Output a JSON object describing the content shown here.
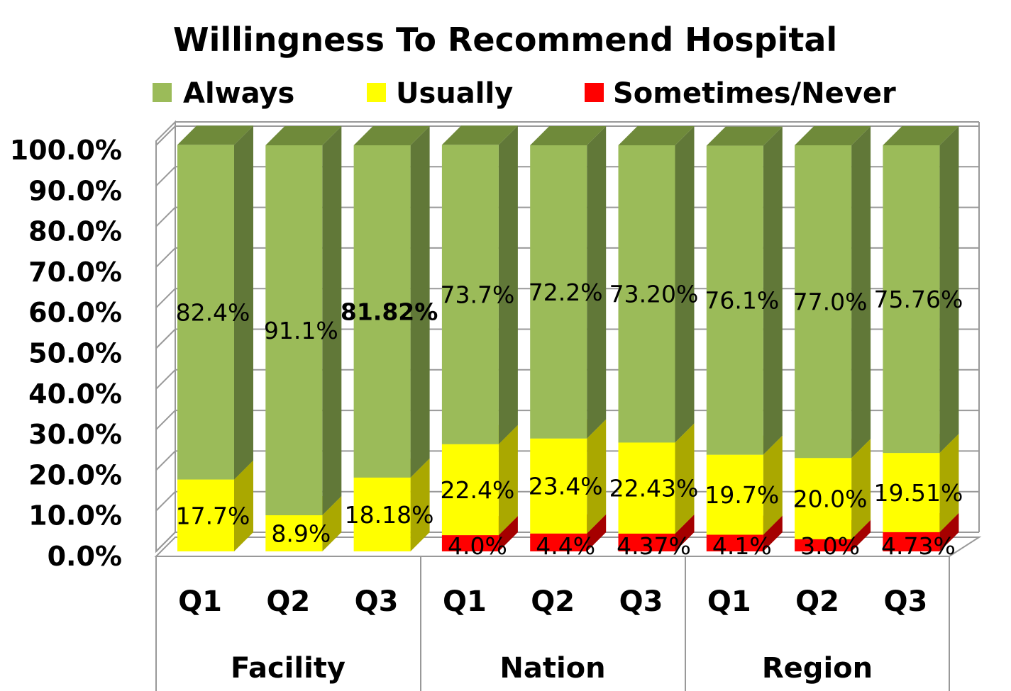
{
  "chart_data": {
    "type": "bar",
    "stacked": true,
    "three_d": true,
    "title": "Willingness To Recommend Hospital",
    "legend_position": "top",
    "ylim": [
      0,
      100
    ],
    "y_ticks": [
      "0.0%",
      "10.0%",
      "20.0%",
      "30.0%",
      "40.0%",
      "50.0%",
      "60.0%",
      "70.0%",
      "80.0%",
      "90.0%",
      "100.0%"
    ],
    "grid": true,
    "groups": [
      {
        "name": "Facility",
        "categories": [
          "Q1",
          "Q2",
          "Q3"
        ]
      },
      {
        "name": "Nation",
        "categories": [
          "Q1",
          "Q2",
          "Q3"
        ]
      },
      {
        "name": "Region",
        "categories": [
          "Q1",
          "Q2",
          "Q3"
        ]
      }
    ],
    "series": [
      {
        "name": "Sometimes/Never",
        "color": "#ff0000",
        "values": [
          0,
          0,
          0,
          4.0,
          4.4,
          4.37,
          4.1,
          3.0,
          4.73
        ],
        "labels": [
          "",
          "",
          "",
          "4.0%",
          "4.4%",
          "4.37%",
          "4.1%",
          "3.0%",
          "4.73%"
        ]
      },
      {
        "name": "Usually",
        "color": "#ffff00",
        "values": [
          17.7,
          8.9,
          18.18,
          22.4,
          23.4,
          22.43,
          19.7,
          20.0,
          19.51
        ],
        "labels": [
          "17.7%",
          "8.9%",
          "18.18%",
          "22.4%",
          "23.4%",
          "22.43%",
          "19.7%",
          "20.0%",
          "19.51%"
        ]
      },
      {
        "name": "Always",
        "color": "#9bbb59",
        "values": [
          82.4,
          91.1,
          81.82,
          73.7,
          72.2,
          73.2,
          76.1,
          77.0,
          75.76
        ],
        "labels": [
          "82.4%",
          "91.1%",
          "81.82%",
          "73.7%",
          "72.2%",
          "73.20%",
          "76.1%",
          "77.0%",
          "75.76%"
        ]
      }
    ],
    "legend": [
      "Always",
      "Usually",
      "Sometimes/Never"
    ]
  }
}
